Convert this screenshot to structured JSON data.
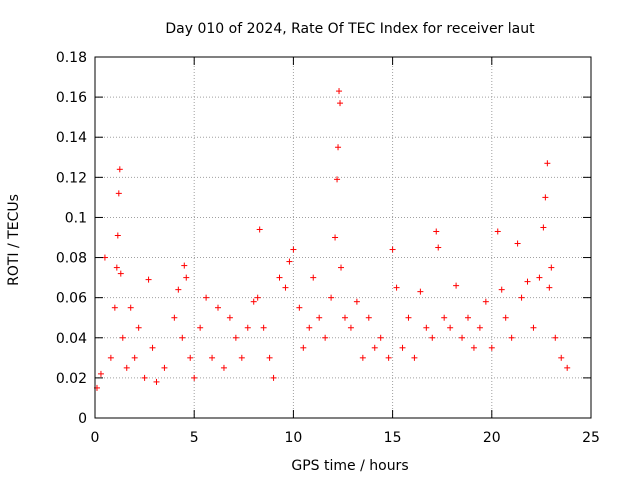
{
  "chart_data": {
    "type": "scatter",
    "title": "Day 010 of 2024, Rate Of TEC Index for receiver laut",
    "xlabel": "GPS time / hours",
    "ylabel": "ROTI / TECUs",
    "xlim": [
      0,
      25
    ],
    "ylim": [
      0,
      0.18
    ],
    "xticks": [
      0,
      5,
      10,
      15,
      20,
      25
    ],
    "xtick_labels": [
      "0",
      "5",
      "10",
      "15",
      "20",
      "25"
    ],
    "yticks": [
      0,
      0.02,
      0.04,
      0.06,
      0.08,
      0.1,
      0.12,
      0.14,
      0.16,
      0.18
    ],
    "ytick_labels": [
      "0",
      "0.02",
      "0.04",
      "0.06",
      "0.08",
      "0.1",
      "0.12",
      "0.14",
      "0.16",
      "0.18"
    ],
    "grid": true,
    "marker": "+",
    "series": [
      {
        "name": "ROTI",
        "color": "#ff0000",
        "x": [
          0.1,
          0.3,
          0.5,
          0.8,
          1.0,
          1.1,
          1.15,
          1.2,
          1.25,
          1.3,
          1.4,
          1.6,
          1.8,
          2.0,
          2.2,
          2.5,
          2.7,
          2.9,
          3.1,
          3.5,
          4.0,
          4.2,
          4.4,
          4.5,
          4.6,
          4.8,
          5.0,
          5.3,
          5.6,
          5.9,
          6.2,
          6.5,
          6.8,
          7.1,
          7.4,
          7.7,
          8.0,
          8.2,
          8.3,
          8.5,
          8.8,
          9.0,
          9.3,
          9.6,
          9.8,
          10.0,
          10.3,
          10.5,
          10.8,
          11.0,
          11.3,
          11.6,
          11.9,
          12.1,
          12.2,
          12.25,
          12.3,
          12.35,
          12.4,
          12.6,
          12.9,
          13.2,
          13.5,
          13.8,
          14.1,
          14.4,
          14.8,
          15.0,
          15.2,
          15.5,
          15.8,
          16.1,
          16.4,
          16.7,
          17.0,
          17.2,
          17.3,
          17.6,
          17.9,
          18.2,
          18.5,
          18.8,
          19.1,
          19.4,
          19.7,
          20.0,
          20.3,
          20.5,
          20.7,
          21.0,
          21.3,
          21.5,
          21.8,
          22.1,
          22.4,
          22.6,
          22.7,
          22.8,
          22.9,
          23.0,
          23.2,
          23.5,
          23.8
        ],
        "y": [
          0.015,
          0.022,
          0.08,
          0.03,
          0.055,
          0.075,
          0.091,
          0.112,
          0.124,
          0.072,
          0.04,
          0.025,
          0.055,
          0.03,
          0.045,
          0.02,
          0.069,
          0.035,
          0.018,
          0.025,
          0.05,
          0.064,
          0.04,
          0.076,
          0.07,
          0.03,
          0.02,
          0.045,
          0.06,
          0.03,
          0.055,
          0.025,
          0.05,
          0.04,
          0.03,
          0.045,
          0.058,
          0.06,
          0.094,
          0.045,
          0.03,
          0.02,
          0.07,
          0.065,
          0.078,
          0.084,
          0.055,
          0.035,
          0.045,
          0.07,
          0.05,
          0.04,
          0.06,
          0.09,
          0.119,
          0.135,
          0.163,
          0.157,
          0.075,
          0.05,
          0.045,
          0.058,
          0.03,
          0.05,
          0.035,
          0.04,
          0.03,
          0.084,
          0.065,
          0.035,
          0.05,
          0.03,
          0.063,
          0.045,
          0.04,
          0.093,
          0.085,
          0.05,
          0.045,
          0.066,
          0.04,
          0.05,
          0.035,
          0.045,
          0.058,
          0.035,
          0.093,
          0.064,
          0.05,
          0.04,
          0.087,
          0.06,
          0.068,
          0.045,
          0.07,
          0.095,
          0.11,
          0.127,
          0.065,
          0.075,
          0.04,
          0.03,
          0.025
        ]
      }
    ]
  }
}
